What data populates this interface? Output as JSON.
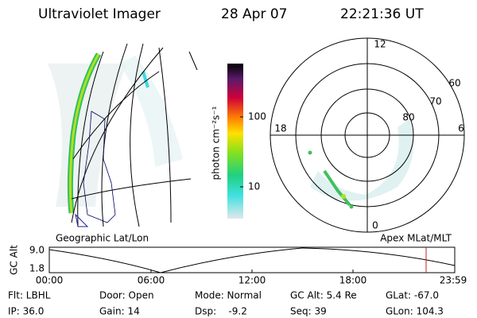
{
  "header": {
    "title": "Ultraviolet Imager",
    "date": "28 Apr 07",
    "time": "22:21:36 UT"
  },
  "colorbar": {
    "label": "photon cm⁻²s⁻¹",
    "ticks": [
      "100",
      "10"
    ]
  },
  "polar": {
    "mlt_labels": [
      "12",
      "18",
      "6",
      "0"
    ],
    "lat_labels": [
      "60",
      "70",
      "80"
    ]
  },
  "panel_labels": {
    "left": "Geographic Lat/Lon",
    "right": "Apex MLat/MLT"
  },
  "altitude_plot": {
    "ylabel": "GC Alt",
    "yticks": [
      "9.0",
      "1.8"
    ],
    "xticks": [
      "00:00",
      "06:00",
      "12:00",
      "18:00",
      "23:59"
    ]
  },
  "footer": {
    "rows": [
      [
        "Flt: LBHL",
        "Door: Open",
        "Mode: Normal",
        "GC Alt: 5.4 Re",
        "GLat: -67.0"
      ],
      [
        "IP: 36.0",
        "Gain: 14",
        "Dsp:    -9.2",
        "Seq: 39",
        "GLon: 104.3"
      ]
    ]
  }
}
